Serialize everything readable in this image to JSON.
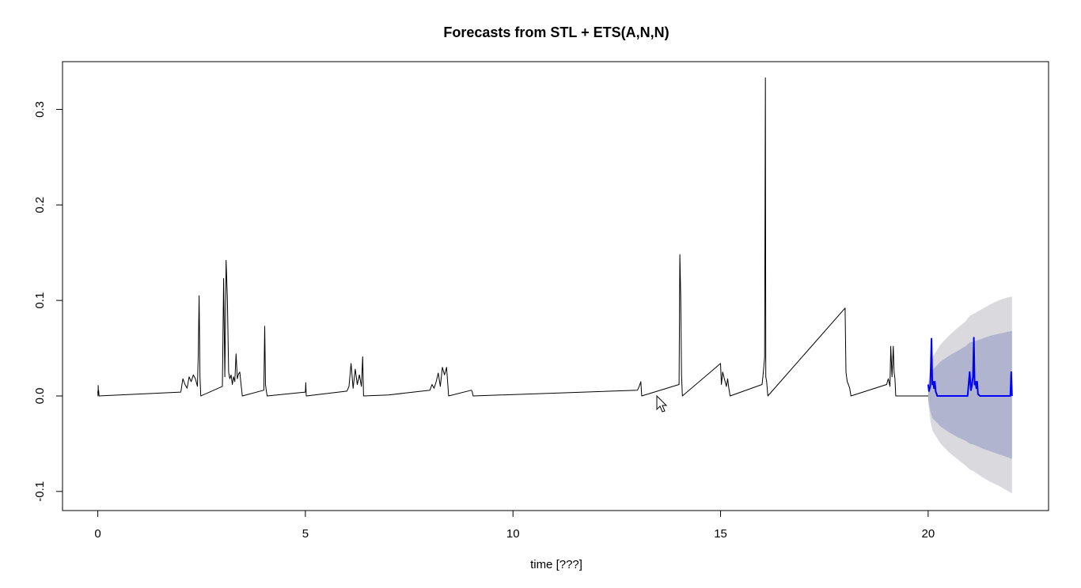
{
  "chart_data": {
    "type": "line",
    "title": "Forecasts from STL +  ETS(A,N,N)",
    "xlabel": "time [???]",
    "ylabel": "",
    "xlim": [
      -0.85,
      22.9
    ],
    "ylim": [
      -0.12,
      0.35
    ],
    "xticks": [
      0,
      5,
      10,
      15,
      20
    ],
    "yticks": [
      -0.1,
      0.0,
      0.1,
      0.2,
      0.3
    ],
    "xtick_labels": [
      "0",
      "5",
      "10",
      "15",
      "20"
    ],
    "ytick_labels": [
      "-0.1",
      "0.0",
      "0.1",
      "0.2",
      "0.3"
    ],
    "grid": false,
    "legend": "none",
    "colors": {
      "observed": "#000000",
      "forecast": "#0000ff",
      "band_80": "#b0b4cf",
      "band_95": "#dadade",
      "frame": "#000000"
    },
    "series": [
      {
        "role": "observed",
        "x": [
          0,
          0.005,
          0.01,
          0.015,
          0.02,
          0.03,
          2.0,
          2.05,
          2.1,
          2.15,
          2.2,
          2.25,
          2.3,
          2.35,
          2.4,
          2.42,
          2.44,
          2.46,
          2.48,
          3.0,
          3.03,
          3.06,
          3.09,
          3.12,
          3.15,
          3.18,
          3.21,
          3.24,
          3.27,
          3.3,
          3.33,
          3.36,
          3.39,
          3.42,
          3.45,
          3.48,
          4.0,
          4.02,
          4.04,
          4.06,
          4.08,
          5.0,
          5.01,
          5.02,
          6.0,
          6.05,
          6.1,
          6.15,
          6.2,
          6.25,
          6.3,
          6.35,
          6.38,
          6.4,
          7.0,
          8.0,
          8.05,
          8.1,
          8.15,
          8.2,
          8.25,
          8.3,
          8.35,
          8.4,
          8.45,
          9.0,
          9.02,
          9.04,
          13.0,
          13.04,
          13.08,
          13.1,
          14.0,
          14.02,
          14.04,
          14.06,
          14.08,
          15.0,
          15.02,
          15.05,
          15.08,
          15.11,
          15.14,
          15.17,
          15.2,
          15.23,
          16.0,
          16.03,
          16.06,
          16.08,
          16.09,
          16.11,
          16.14,
          18.0,
          18.02,
          18.05,
          18.08,
          18.11,
          18.14,
          19.0,
          19.04,
          19.08,
          19.1,
          19.13,
          19.16,
          19.18,
          19.2,
          19.22,
          19.95,
          20.0
        ],
        "y": [
          0.005,
          0.0,
          0.011,
          0.002,
          0.006,
          0.0,
          0.004,
          0.018,
          0.012,
          0.008,
          0.02,
          0.015,
          0.022,
          0.018,
          0.01,
          0.045,
          0.105,
          0.02,
          0.0,
          0.01,
          0.123,
          0.02,
          0.142,
          0.103,
          0.025,
          0.018,
          0.022,
          0.012,
          0.02,
          0.015,
          0.044,
          0.018,
          0.023,
          0.025,
          0.012,
          0.0,
          0.006,
          0.073,
          0.012,
          0.005,
          0.0,
          0.004,
          0.014,
          0.0,
          0.005,
          0.01,
          0.034,
          0.008,
          0.028,
          0.012,
          0.022,
          0.01,
          0.041,
          0.0,
          0.001,
          0.006,
          0.012,
          0.008,
          0.015,
          0.024,
          0.01,
          0.03,
          0.022,
          0.03,
          0.0,
          0.006,
          0.004,
          0.0,
          0.006,
          0.01,
          0.015,
          0.0,
          0.012,
          0.148,
          0.103,
          0.022,
          0.0,
          0.034,
          0.012,
          0.025,
          0.02,
          0.015,
          0.01,
          0.018,
          0.008,
          0.0,
          0.012,
          0.025,
          0.04,
          0.333,
          0.02,
          0.015,
          0.0,
          0.092,
          0.025,
          0.015,
          0.012,
          0.008,
          0.0,
          0.012,
          0.018,
          0.01,
          0.052,
          0.02,
          0.052,
          0.025,
          0.018,
          0.0,
          0.0,
          0.0
        ]
      },
      {
        "role": "forecast",
        "x": [
          20.0,
          20.02,
          20.05,
          20.08,
          20.1,
          20.12,
          20.14,
          20.16,
          20.18,
          20.22,
          20.95,
          21.0,
          21.03,
          21.05,
          21.08,
          21.1,
          21.12,
          21.14,
          21.16,
          21.18,
          21.2,
          21.25,
          21.98,
          22.0,
          22.02
        ],
        "y": [
          0.012,
          0.005,
          0.01,
          0.06,
          0.012,
          0.015,
          0.008,
          0.015,
          0.005,
          0.0,
          0.0,
          0.025,
          0.006,
          0.01,
          0.02,
          0.061,
          0.012,
          0.015,
          0.008,
          0.015,
          0.002,
          0.0,
          0.0,
          0.025,
          0.0
        ]
      }
    ],
    "intervals": {
      "x": [
        20.0,
        20.05,
        20.1,
        20.3,
        20.5,
        20.7,
        20.9,
        21.0,
        21.1,
        21.3,
        21.5,
        21.7,
        21.9,
        22.02
      ],
      "lower80": [
        -0.003,
        -0.016,
        -0.023,
        -0.032,
        -0.038,
        -0.043,
        -0.047,
        -0.05,
        -0.051,
        -0.055,
        -0.058,
        -0.061,
        -0.064,
        -0.066
      ],
      "upper80": [
        0.01,
        0.02,
        0.027,
        0.036,
        0.042,
        0.047,
        0.052,
        0.056,
        0.057,
        0.06,
        0.063,
        0.065,
        0.067,
        0.068
      ],
      "lower95": [
        -0.005,
        -0.025,
        -0.036,
        -0.05,
        -0.059,
        -0.066,
        -0.073,
        -0.077,
        -0.079,
        -0.085,
        -0.09,
        -0.094,
        -0.099,
        -0.102
      ],
      "upper95": [
        0.013,
        0.03,
        0.04,
        0.054,
        0.063,
        0.071,
        0.078,
        0.084,
        0.086,
        0.091,
        0.096,
        0.1,
        0.103,
        0.104
      ]
    }
  }
}
